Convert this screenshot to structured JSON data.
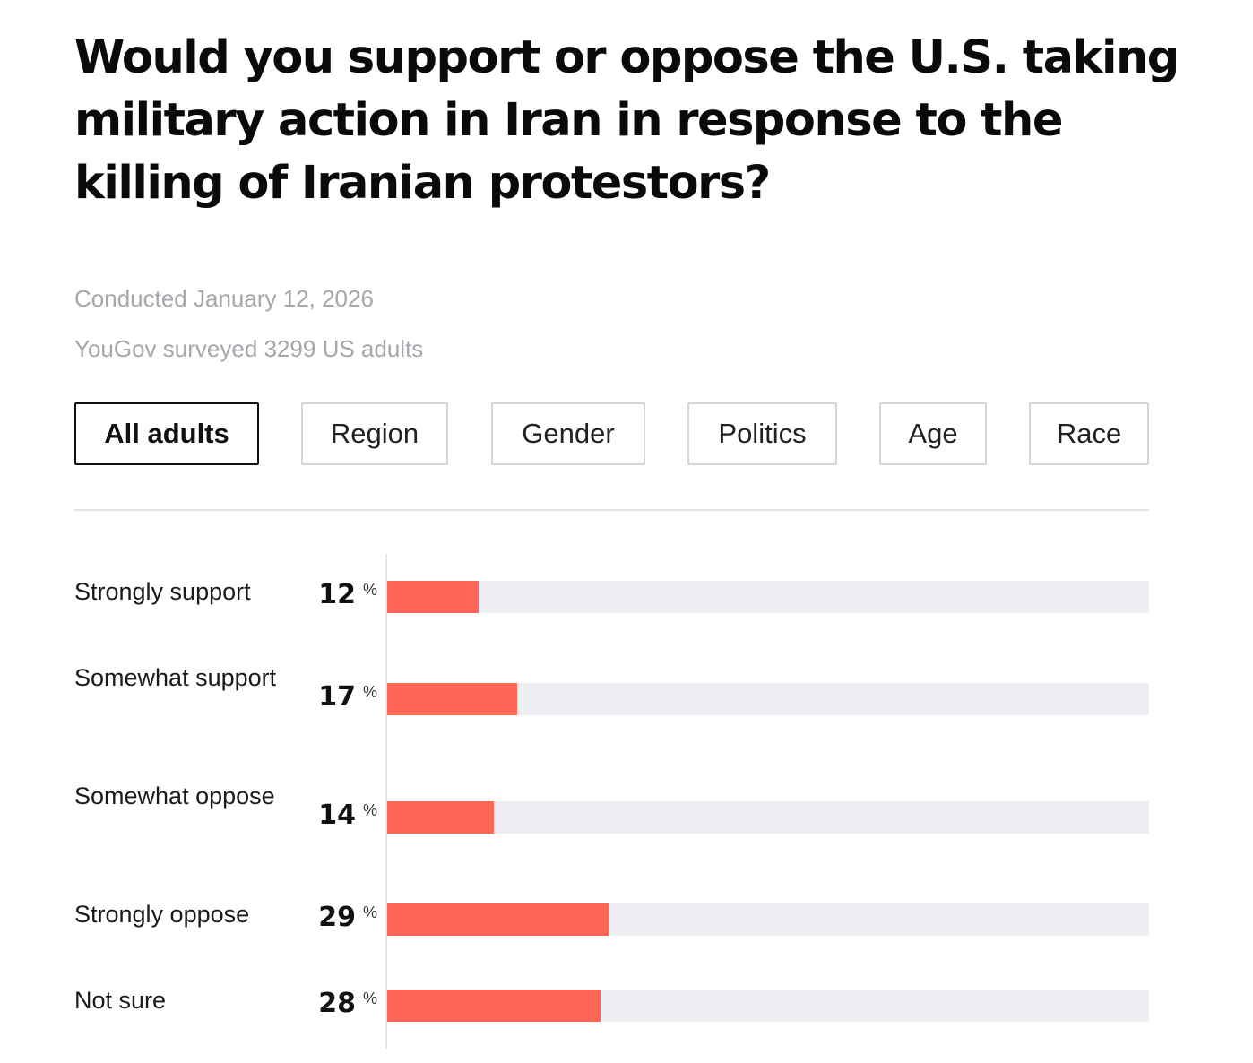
{
  "title": "Would you support or oppose the U.S. taking military action in Iran in response to the killing of Iranian protestors?",
  "meta": {
    "conducted": "Conducted January 12, 2026",
    "surveyed": "YouGov surveyed 3299 US adults"
  },
  "tabs": [
    {
      "label": "All adults",
      "active": true
    },
    {
      "label": "Region",
      "active": false
    },
    {
      "label": "Gender",
      "active": false
    },
    {
      "label": "Politics",
      "active": false
    },
    {
      "label": "Age",
      "active": false
    },
    {
      "label": "Race",
      "active": false
    }
  ],
  "colors": {
    "bar": "#ff6655",
    "track": "#eeeff3"
  },
  "chart_data": {
    "type": "bar",
    "orientation": "horizontal",
    "unit": "%",
    "xlim": [
      0,
      100
    ],
    "categories": [
      "Strongly support",
      "Somewhat support",
      "Somewhat oppose",
      "Strongly oppose",
      "Not sure"
    ],
    "values": [
      12,
      17,
      14,
      29,
      28
    ]
  }
}
